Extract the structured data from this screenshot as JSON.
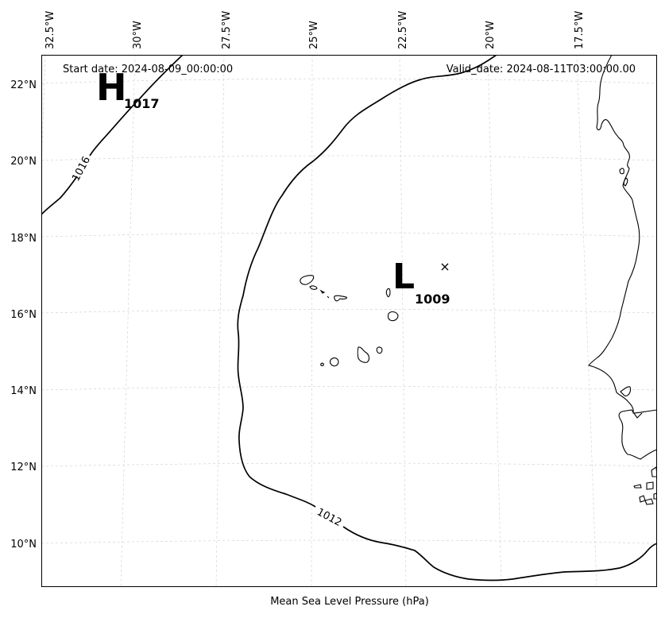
{
  "map": {
    "start_date": "Start date: 2024-08-09_00:00:00",
    "valid_date": "Valid_date: 2024-08-11T03:00:00.00",
    "caption": "Mean Sea Level Pressure (hPa)",
    "lon_labels": [
      "32.5°W",
      "30°W",
      "27.5°W",
      "25°W",
      "22.5°W",
      "20°W",
      "17.5°W"
    ],
    "lat_labels": [
      "22°N",
      "20°N",
      "18°N",
      "16°N",
      "14°N",
      "12°N",
      "10°N"
    ],
    "high": {
      "letter": "H",
      "value": "1017"
    },
    "low": {
      "letter": "L",
      "value": "1009"
    },
    "isobar_labels": [
      "1016",
      "1012"
    ],
    "marker": {
      "symbol": "×",
      "name": "storm-position-marker"
    },
    "colors": {
      "isobar": "#000000",
      "gridline": "#cccccc",
      "coastline": "#000000",
      "background": "#ffffff"
    }
  }
}
